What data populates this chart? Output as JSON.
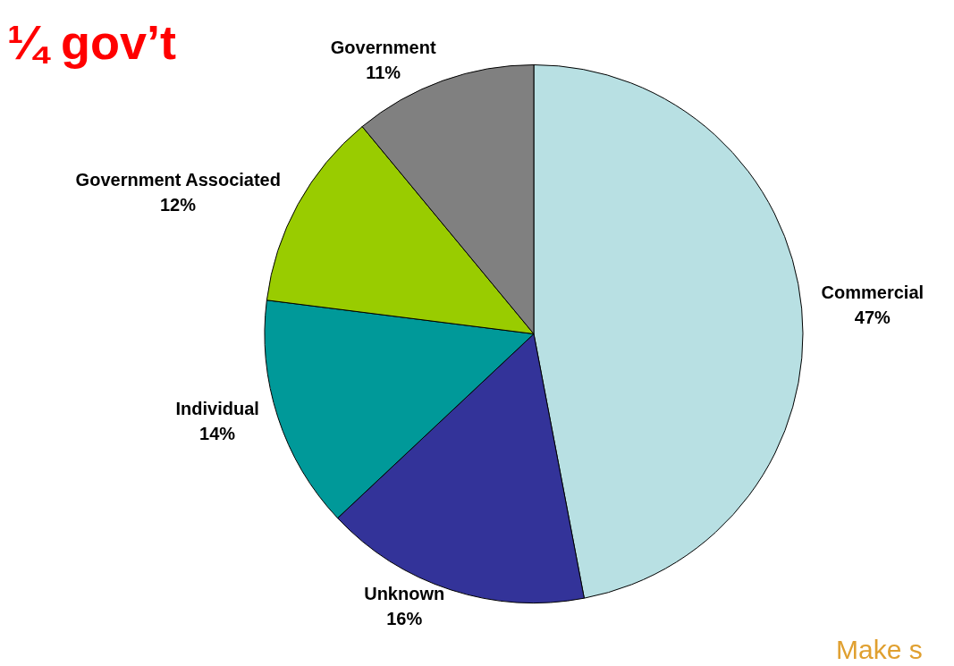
{
  "chart_data": {
    "type": "pie",
    "categories": [
      "Commercial",
      "Unknown",
      "Individual",
      "Government Associated",
      "Government"
    ],
    "values": [
      47,
      16,
      14,
      12,
      11
    ],
    "colors": [
      "#b8e0e3",
      "#333399",
      "#009999",
      "#99cc00",
      "#808080"
    ],
    "value_labels": [
      "47%",
      "16%",
      "14%",
      "12%",
      "11%"
    ],
    "legend": false,
    "annotations": [
      "¼ gov’t",
      "Make s"
    ]
  }
}
